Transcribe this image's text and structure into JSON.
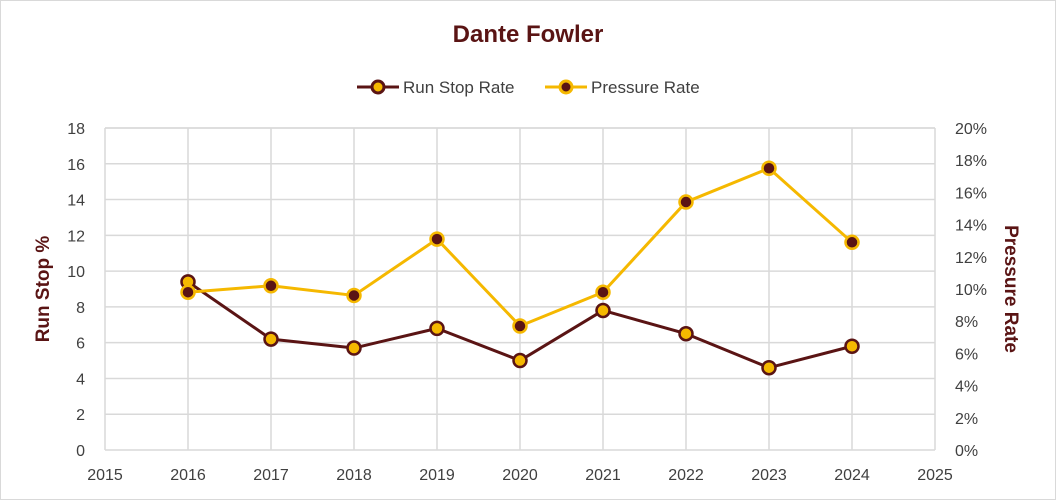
{
  "chart_data": {
    "type": "line",
    "title": "Dante Fowler",
    "xlabel": "",
    "ylabel": "Run Stop %",
    "y2label": "Pressure Rate",
    "xlim": [
      2015,
      2025
    ],
    "ylim": [
      0,
      18
    ],
    "y2lim": [
      0,
      0.2
    ],
    "x_ticks": [
      "2015",
      "2016",
      "2017",
      "2018",
      "2019",
      "2020",
      "2021",
      "2022",
      "2023",
      "2024",
      "2025"
    ],
    "y_ticks": [
      "0",
      "2",
      "4",
      "6",
      "8",
      "10",
      "12",
      "14",
      "16",
      "18"
    ],
    "y2_ticks": [
      "0%",
      "2%",
      "4%",
      "6%",
      "8%",
      "10%",
      "12%",
      "14%",
      "16%",
      "18%",
      "20%"
    ],
    "legend_position": "top-center",
    "grid": true,
    "series": [
      {
        "name": "Run Stop Rate",
        "axis": "left",
        "line_color": "#5a1414",
        "marker_fill": "#f5b800",
        "x": [
          2016,
          2017,
          2018,
          2019,
          2020,
          2021,
          2022,
          2023,
          2024
        ],
        "values": [
          9.4,
          6.2,
          5.7,
          6.8,
          5.0,
          7.8,
          6.5,
          4.6,
          5.8
        ]
      },
      {
        "name": "Pressure Rate",
        "axis": "right",
        "line_color": "#f5b800",
        "marker_fill": "#5a1414",
        "x": [
          2016,
          2017,
          2018,
          2019,
          2020,
          2021,
          2022,
          2023,
          2024
        ],
        "values": [
          0.098,
          0.102,
          0.096,
          0.131,
          0.077,
          0.098,
          0.154,
          0.175,
          0.129
        ]
      }
    ]
  }
}
